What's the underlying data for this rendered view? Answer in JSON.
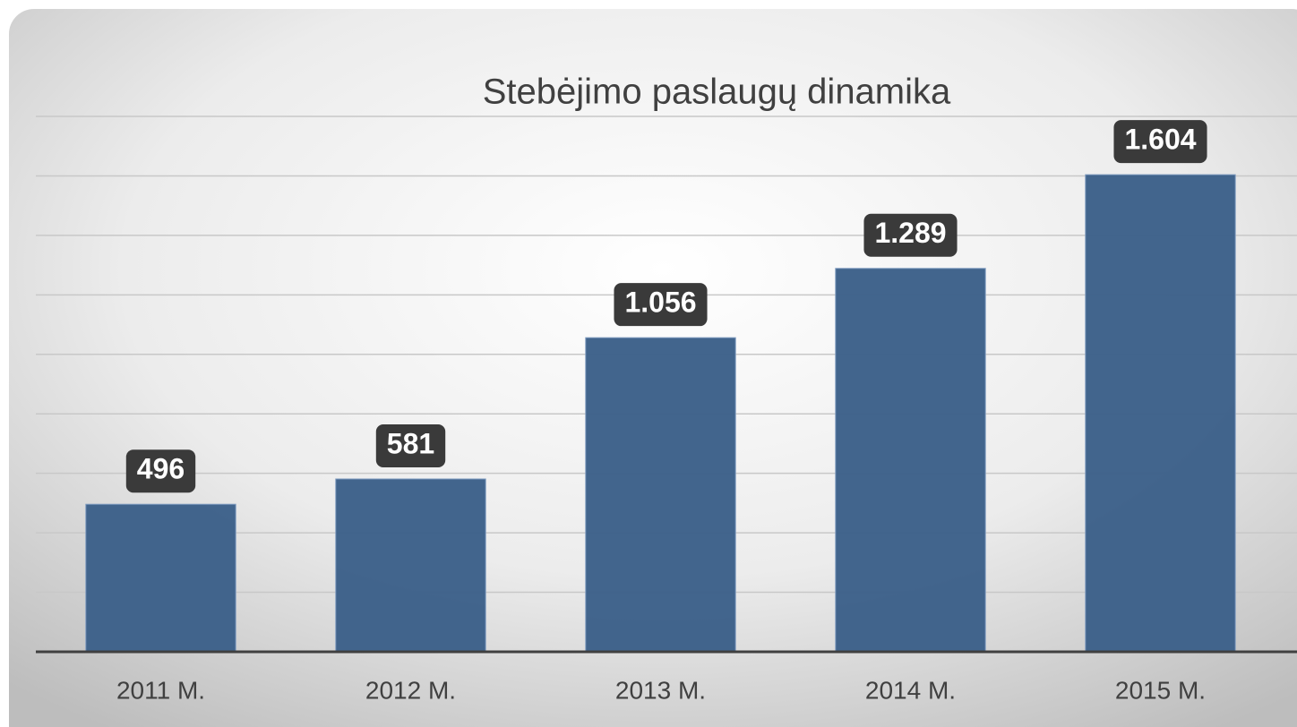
{
  "chart_data": {
    "type": "bar",
    "title": "Stebėjimo paslaugų dinamika",
    "categories": [
      "2011 M.",
      "2012 M.",
      "2013 M.",
      "2014 M.",
      "2015 M."
    ],
    "values": [
      496,
      581,
      1056,
      1289,
      1604
    ],
    "value_labels": [
      "496",
      "581",
      "1.056",
      "1.289",
      "1.604"
    ],
    "color": "#3c6089",
    "ylim": [
      0,
      1800
    ],
    "yticks": [
      0,
      200,
      400,
      600,
      800,
      1000,
      1200,
      1400,
      1600,
      1800
    ],
    "grid": true
  }
}
